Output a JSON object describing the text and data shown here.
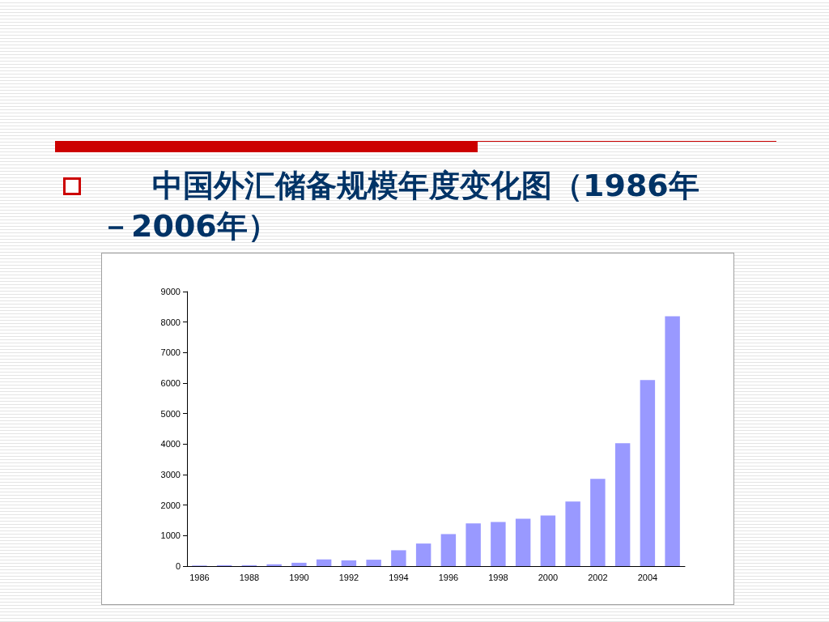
{
  "chart_data": {
    "type": "bar",
    "title": "中国外汇储备规模年度变化图（1986年－2006年）",
    "categories": [
      "1986",
      null,
      "1988",
      null,
      "1990",
      null,
      "1992",
      null,
      "1994",
      null,
      "1996",
      null,
      "1998",
      null,
      "2000",
      null,
      "2002",
      null,
      "2004",
      null
    ],
    "values": [
      20,
      30,
      30,
      60,
      110,
      220,
      190,
      210,
      520,
      740,
      1050,
      1400,
      1450,
      1550,
      1660,
      2120,
      2860,
      4030,
      6100,
      8190
    ],
    "color": "#9999ff",
    "ylim": [
      0,
      9000
    ],
    "yticks": [
      0,
      1000,
      2000,
      3000,
      4000,
      5000,
      6000,
      7000,
      8000,
      9000
    ],
    "grid": false
  }
}
